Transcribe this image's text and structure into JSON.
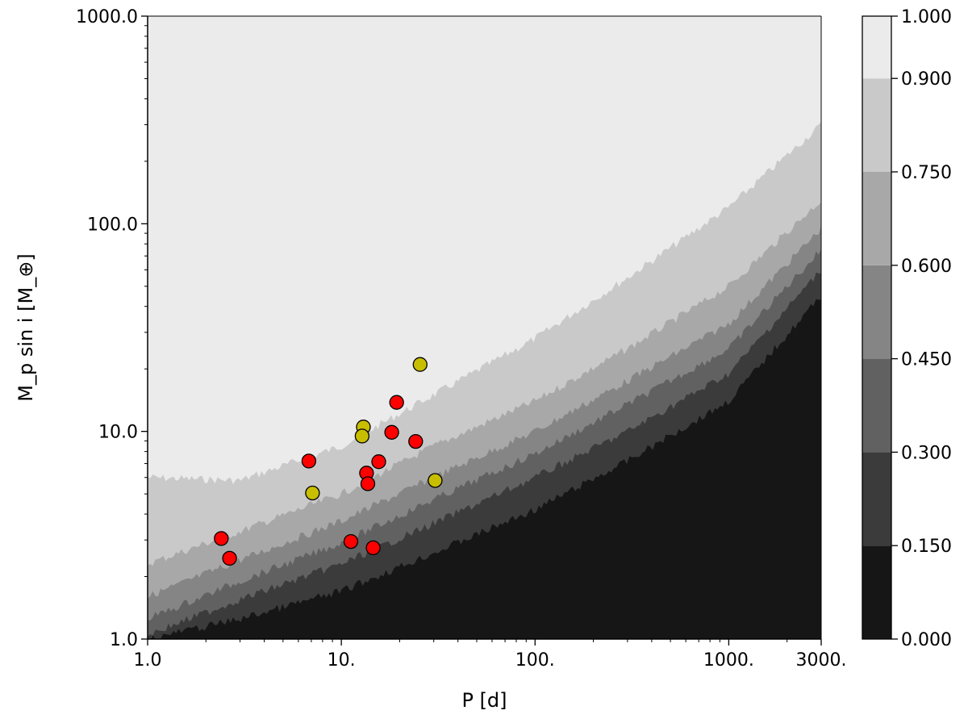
{
  "chart_data": {
    "type": "heatmap",
    "title": "",
    "xlabel": "P [d]",
    "ylabel": "M_p sin i [M_⊕]",
    "x_scale": "log",
    "y_scale": "log",
    "xlim": [
      1,
      3000
    ],
    "ylim": [
      1,
      1000
    ],
    "x_ticks": [
      {
        "value": 1,
        "label": "1.0"
      },
      {
        "value": 10,
        "label": "10."
      },
      {
        "value": 100,
        "label": "100."
      },
      {
        "value": 1000,
        "label": "1000."
      },
      {
        "value": 3000,
        "label": "3000."
      }
    ],
    "y_ticks": [
      {
        "value": 1,
        "label": "1.0"
      },
      {
        "value": 10,
        "label": "10.0"
      },
      {
        "value": 100,
        "label": "100.0"
      },
      {
        "value": 1000,
        "label": "1000.0"
      }
    ],
    "colorbar": {
      "levels": [
        0.0,
        0.15,
        0.3,
        0.45,
        0.6,
        0.75,
        0.9,
        1.0
      ],
      "tick_labels": [
        "0.000",
        "0.150",
        "0.300",
        "0.450",
        "0.600",
        "0.750",
        "0.900",
        "1.000"
      ],
      "colors": [
        "#161616",
        "#3b3b3b",
        "#616161",
        "#858585",
        "#a8a8a8",
        "#c9c9c9",
        "#ebebeb"
      ]
    },
    "contour_boundaries": [
      {
        "level": 0.15,
        "x": [
          1,
          3,
          10,
          30,
          100,
          300,
          1000,
          3000
        ],
        "y": [
          1.0,
          1.25,
          1.7,
          2.6,
          4.2,
          7.2,
          14,
          45
        ]
      },
      {
        "level": 0.3,
        "x": [
          1,
          3,
          10,
          30,
          100,
          300,
          1000,
          3000
        ],
        "y": [
          1.05,
          1.55,
          2.3,
          3.6,
          6.0,
          10,
          19,
          60
        ]
      },
      {
        "level": 0.45,
        "x": [
          1,
          3,
          10,
          30,
          100,
          300,
          1000,
          3000
        ],
        "y": [
          1.25,
          1.9,
          2.9,
          4.7,
          7.8,
          13.5,
          25,
          75
        ]
      },
      {
        "level": 0.6,
        "x": [
          1,
          3,
          10,
          30,
          100,
          300,
          1000,
          3000
        ],
        "y": [
          1.6,
          2.4,
          3.7,
          6.0,
          10,
          17.5,
          33,
          95
        ]
      },
      {
        "level": 0.75,
        "x": [
          1,
          3,
          10,
          30,
          100,
          300,
          1000,
          3000
        ],
        "y": [
          2.3,
          3.3,
          5.0,
          8.5,
          14,
          25,
          50,
          130
        ]
      },
      {
        "level": 0.9,
        "x": [
          1,
          3,
          10,
          30,
          100,
          300,
          1000,
          3000
        ],
        "y": [
          6.0,
          5.8,
          8.5,
          15,
          28,
          55,
          120,
          300
        ]
      }
    ],
    "series": [
      {
        "color": "#ff0000",
        "points": [
          {
            "x": 2.4,
            "y": 3.05
          },
          {
            "x": 2.65,
            "y": 2.45
          },
          {
            "x": 6.8,
            "y": 7.2
          },
          {
            "x": 11.2,
            "y": 2.95
          },
          {
            "x": 13.5,
            "y": 6.3
          },
          {
            "x": 13.7,
            "y": 5.6
          },
          {
            "x": 14.6,
            "y": 2.75
          },
          {
            "x": 15.6,
            "y": 7.15
          },
          {
            "x": 18.2,
            "y": 9.9
          },
          {
            "x": 19.3,
            "y": 13.8
          },
          {
            "x": 24.2,
            "y": 8.95
          }
        ]
      },
      {
        "color": "#c8be00",
        "points": [
          {
            "x": 7.1,
            "y": 5.05
          },
          {
            "x": 13.0,
            "y": 10.5
          },
          {
            "x": 12.8,
            "y": 9.5
          },
          {
            "x": 25.5,
            "y": 21.0
          },
          {
            "x": 30.5,
            "y": 5.8
          }
        ]
      }
    ],
    "grid": false,
    "legend": "none"
  }
}
